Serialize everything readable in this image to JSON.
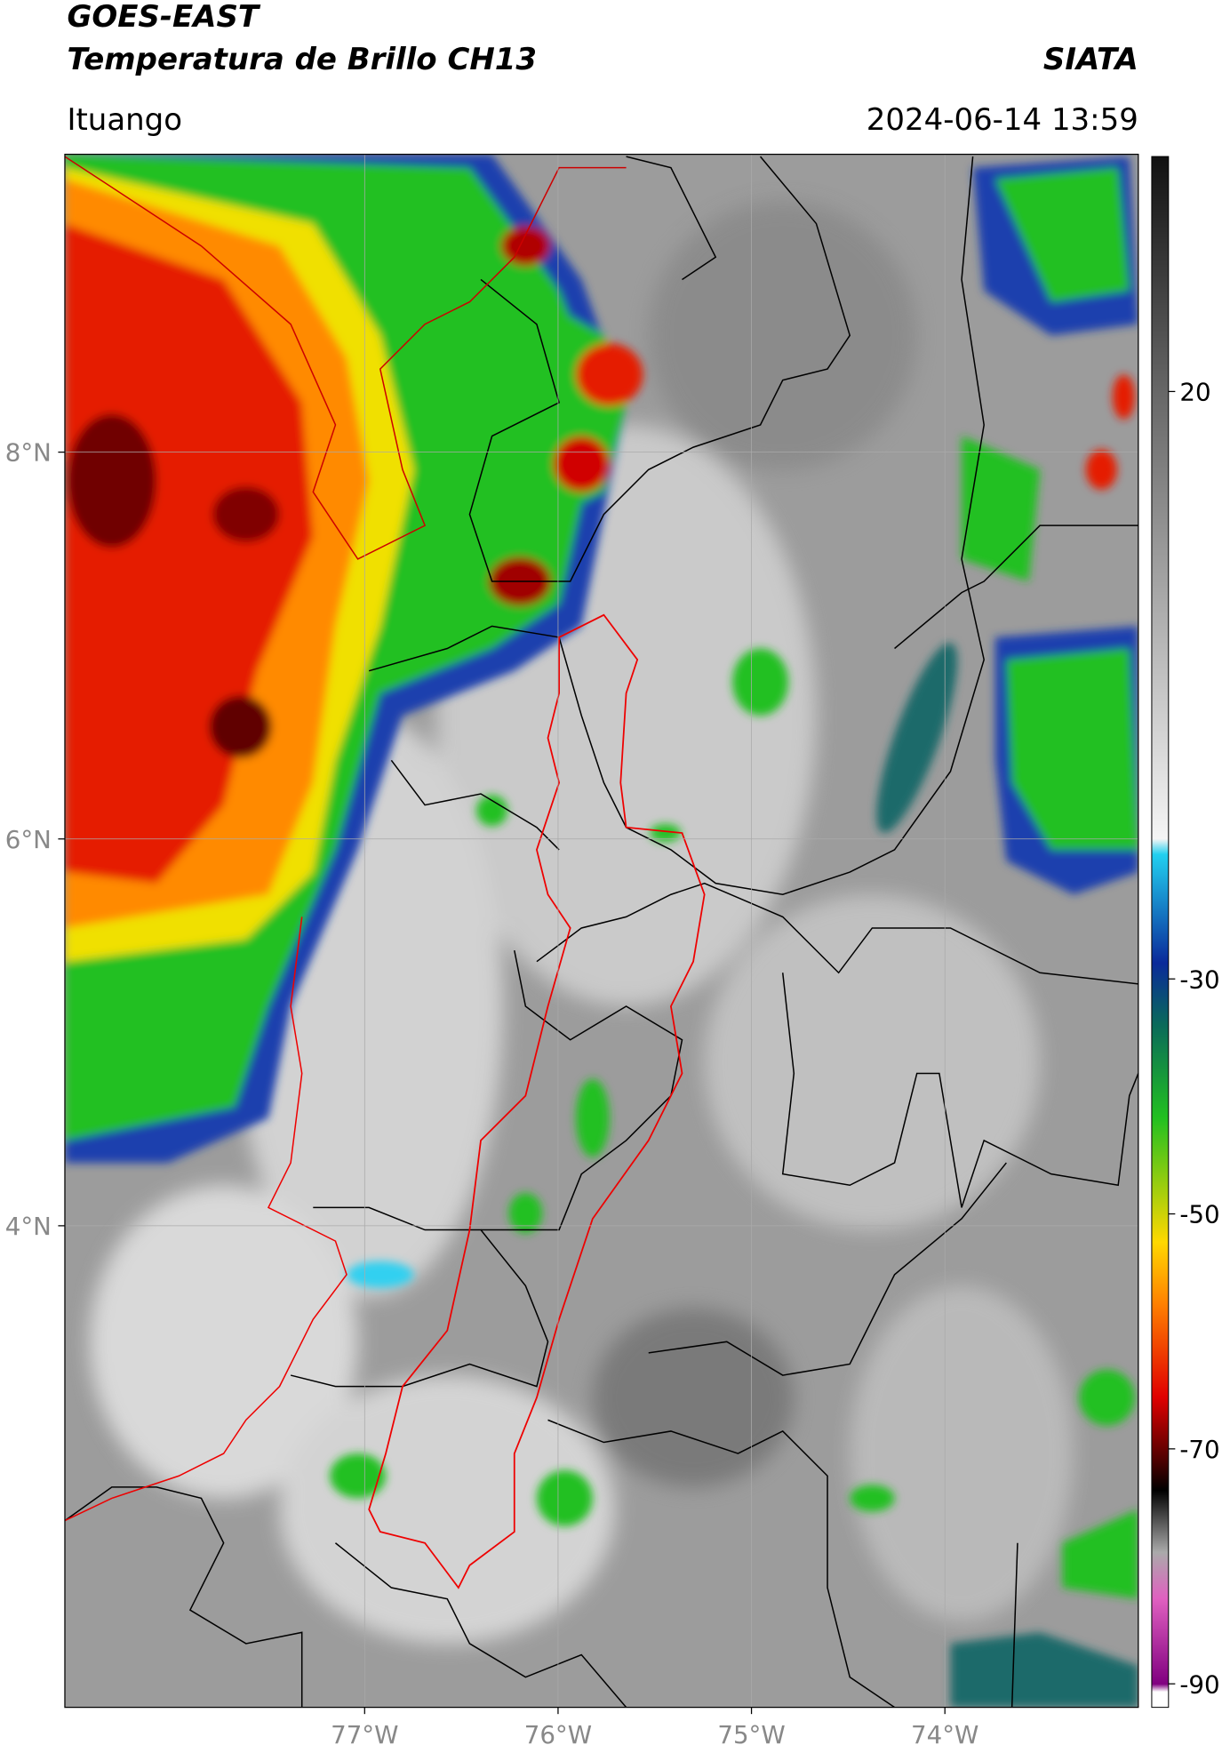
{
  "header": {
    "title": "GOES-EAST",
    "subtitle": "Temperatura de Brillo CH13",
    "source": "SIATA",
    "location": "Ituango",
    "datetime": "2024-06-14 13:59"
  },
  "map": {
    "lon_range": [
      -78.55,
      -73.0
    ],
    "lat_range": [
      1.51,
      9.54
    ],
    "lon_ticks": [
      {
        "value": -77,
        "label": "77°W"
      },
      {
        "value": -76,
        "label": "76°W"
      },
      {
        "value": -75,
        "label": "75°W"
      },
      {
        "value": -74,
        "label": "74°W"
      }
    ],
    "lat_ticks": [
      {
        "value": 8,
        "label": "8°N"
      },
      {
        "value": 6,
        "label": "6°N"
      },
      {
        "value": 4,
        "label": "4°N"
      }
    ]
  },
  "colorbar": {
    "range": [
      -92,
      40
    ],
    "ticks": [
      20,
      -30,
      -50,
      -70,
      -90
    ]
  }
}
